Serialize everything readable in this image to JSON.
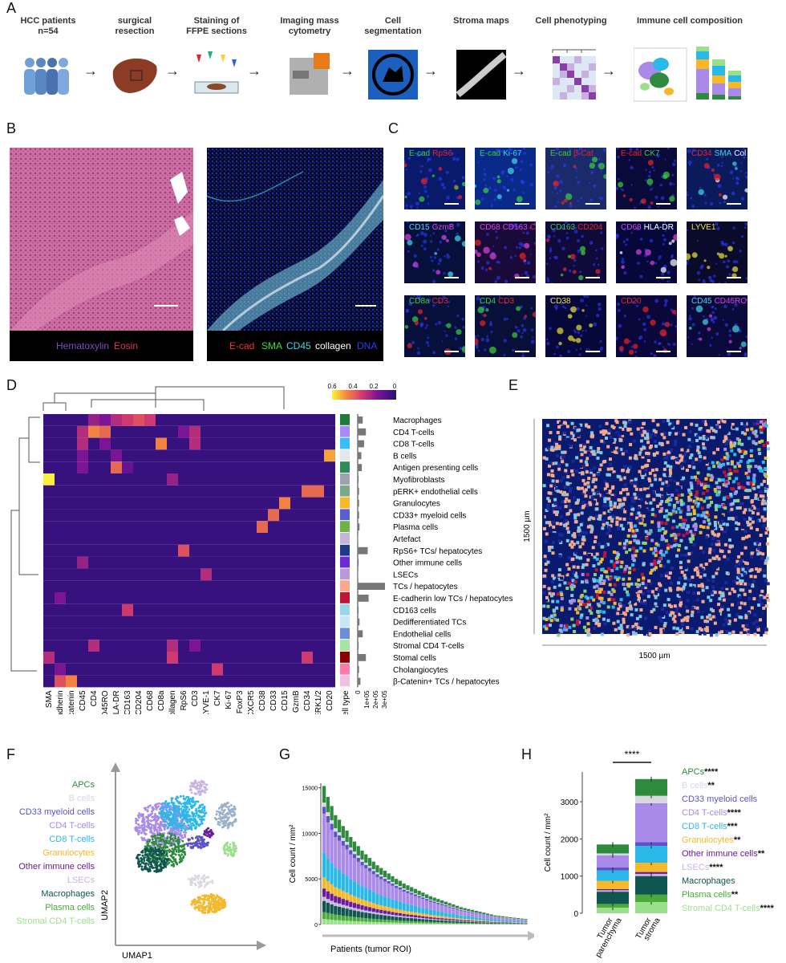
{
  "panels": {
    "a": "A",
    "b": "B",
    "c": "C",
    "d": "D",
    "e": "E",
    "f": "F",
    "g": "G",
    "h": "H"
  },
  "workflow": {
    "steps": [
      {
        "label": "HCC patients\nn=54"
      },
      {
        "label": "surgical\nresection"
      },
      {
        "label": "Staining of\nFFPE sections"
      },
      {
        "label": "Imaging mass\ncytometry"
      },
      {
        "label": "Cell\nsegmentation"
      },
      {
        "label": "Stroma maps"
      },
      {
        "label": "Cell phenotyping"
      },
      {
        "label": "Immune cell composition"
      }
    ]
  },
  "panel_b": {
    "he_caption": [
      "Hematoxylin",
      "Eosin"
    ],
    "imc_caption": [
      "E-cad",
      "SMA",
      "CD45",
      "collagen",
      "DNA"
    ],
    "colors": {
      "hematoxylin": "#7b4fc0",
      "eosin": "#e0306a",
      "ecad": "#ff2a2a",
      "sma": "#34e034",
      "cd45": "#3fd6e6",
      "collagen": "#ffffff",
      "dna": "#2a3bff"
    }
  },
  "panel_c": {
    "tiles": [
      [
        {
          "t": "E-cad",
          "c": "#3ad13a"
        },
        {
          "t": "RpS6",
          "c": "#e22"
        }
      ],
      [
        {
          "t": "E-cad",
          "c": "#3ad13a"
        },
        {
          "t": "Ki-67",
          "c": "#40d8e6"
        }
      ],
      [
        {
          "t": "E-cad",
          "c": "#3ad13a"
        },
        {
          "t": "β-Cat",
          "c": "#e22"
        }
      ],
      [
        {
          "t": "E-cad",
          "c": "#e22"
        },
        {
          "t": "CK7",
          "c": "#3ad13a"
        }
      ],
      [
        {
          "t": "CD34",
          "c": "#e22"
        },
        {
          "t": "SMA",
          "c": "#40d8e6"
        },
        {
          "t": "Col",
          "c": "#fff"
        }
      ],
      [
        {
          "t": "CD15",
          "c": "#40d8e6"
        },
        {
          "t": "GzmB",
          "c": "#e040e0"
        }
      ],
      [
        {
          "t": "CD68",
          "c": "#e040e0"
        },
        {
          "t": "CD163",
          "c": "#e040e0"
        },
        {
          "t": "CD204",
          "c": "#e22"
        }
      ],
      [
        {
          "t": "CD163",
          "c": "#3ad13a"
        },
        {
          "t": "CD204",
          "c": "#e22"
        }
      ],
      [
        {
          "t": "CD68",
          "c": "#e040e0"
        },
        {
          "t": "HLA-DR",
          "c": "#fff"
        }
      ],
      [
        {
          "t": "LYVE1",
          "c": "#f0e030"
        }
      ],
      [
        {
          "t": "CD8a",
          "c": "#3ad13a"
        },
        {
          "t": "CD3",
          "c": "#e22"
        }
      ],
      [
        {
          "t": "CD4",
          "c": "#3ad13a"
        },
        {
          "t": "CD3",
          "c": "#e22"
        }
      ],
      [
        {
          "t": "CD38",
          "c": "#f0e030"
        }
      ],
      [
        {
          "t": "CD20",
          "c": "#e22"
        }
      ],
      [
        {
          "t": "CD45",
          "c": "#40d8e6"
        },
        {
          "t": "CD45RO",
          "c": "#e040e0"
        }
      ]
    ]
  },
  "panel_d": {
    "rows": [
      "Macrophages",
      "CD4 T-cells",
      "CD8 T-cells",
      "B cells",
      "Antigen presenting cells",
      "Myofibroblasts",
      "pERK+ endothelial cells",
      "Granulocytes",
      "CD33+ myeloid cells",
      "Plasma cells",
      "Artefact",
      "RpS6+ TCs/ hepatocytes",
      "Other immune cells",
      "LSECs",
      "TCs / hepatocytes",
      "E-cadherin low TCs / hepatocytes",
      "CD163 cells",
      "Dedifferentiated TCs",
      "Endothelial cells",
      "Stromal CD4 T-cells",
      "Stomal cells",
      "Cholangiocytes",
      "β-Catenin+ TCs / hepatocytes"
    ],
    "cols": [
      "SMA",
      "E-cadherin",
      "β-catenin",
      "CD45",
      "CD4",
      "CD45RO",
      "HLA-DR",
      "CD163",
      "CD204",
      "CD68",
      "CD8a",
      "Collagen",
      "RpS6",
      "CD3",
      "LYVE-1",
      "CK7",
      "Ki-67",
      "FoxP3",
      "CXCR5",
      "CD38",
      "CD33",
      "CD15",
      "GzmB",
      "CD34",
      "pERK1/2",
      "CD20"
    ],
    "hot": [
      [
        0,
        6,
        0.3
      ],
      [
        0,
        7,
        0.35
      ],
      [
        0,
        8,
        0.4
      ],
      [
        0,
        9,
        0.35
      ],
      [
        0,
        4,
        0.25
      ],
      [
        0,
        5,
        0.2
      ],
      [
        1,
        4,
        0.5
      ],
      [
        1,
        5,
        0.45
      ],
      [
        1,
        3,
        0.3
      ],
      [
        1,
        12,
        0.2
      ],
      [
        1,
        13,
        0.3
      ],
      [
        2,
        10,
        0.5
      ],
      [
        2,
        13,
        0.3
      ],
      [
        2,
        3,
        0.3
      ],
      [
        2,
        5,
        0.2
      ],
      [
        3,
        25,
        0.55
      ],
      [
        3,
        6,
        0.2
      ],
      [
        3,
        3,
        0.2
      ],
      [
        4,
        6,
        0.45
      ],
      [
        4,
        3,
        0.2
      ],
      [
        4,
        7,
        0.15
      ],
      [
        5,
        0,
        0.65
      ],
      [
        5,
        11,
        0.25
      ],
      [
        6,
        24,
        0.45
      ],
      [
        6,
        23,
        0.45
      ],
      [
        7,
        21,
        0.5
      ],
      [
        8,
        20,
        0.45
      ],
      [
        9,
        19,
        0.45
      ],
      [
        11,
        12,
        0.4
      ],
      [
        12,
        3,
        0.25
      ],
      [
        13,
        14,
        0.3
      ],
      [
        15,
        1,
        0.2
      ],
      [
        16,
        7,
        0.35
      ],
      [
        19,
        4,
        0.3
      ],
      [
        19,
        11,
        0.3
      ],
      [
        19,
        13,
        0.2
      ],
      [
        20,
        0,
        0.3
      ],
      [
        20,
        11,
        0.35
      ],
      [
        20,
        23,
        0.35
      ],
      [
        21,
        15,
        0.35
      ],
      [
        21,
        1,
        0.2
      ],
      [
        22,
        2,
        0.5
      ],
      [
        22,
        1,
        0.4
      ]
    ],
    "row_colors": [
      "#1f7a3a",
      "#a78bfa",
      "#38bdf8",
      "#e5e7eb",
      "#2e8b57",
      "#9ca3af",
      "#7ba88a",
      "#f5b82a",
      "#5a5fd0",
      "#6fb347",
      "#c4b4d6",
      "#1e3a8a",
      "#6d28d9",
      "#b89ad6",
      "#f8a98a",
      "#c0153a",
      "#9ad6e8",
      "#c9e6f8",
      "#6a8fd8",
      "#a7e3a0",
      "#8b0000",
      "#ff7aa8",
      "#f0c0e0"
    ],
    "n_cells": [
      5500,
      9000,
      7000,
      4000,
      4500,
      1000,
      1500,
      1500,
      1500,
      2000,
      500,
      11000,
      1000,
      500,
      30000,
      12000,
      1000,
      2000,
      5500,
      1000,
      9000,
      1500,
      3000
    ],
    "n_cells_ticks": [
      "0",
      "1e+05",
      "2e+05",
      "3e+05"
    ],
    "colorbar_ticks": [
      "0.6",
      "0.4",
      "0.2",
      "0"
    ],
    "cell_type_label": "Cell type",
    "n_cells_label": "n_cells"
  },
  "panel_e": {
    "ylabel": "1500 µm",
    "xlabel": "1500 µm"
  },
  "panel_f": {
    "legend": [
      {
        "t": "APCs",
        "c": "#2e8b3e"
      },
      {
        "t": "B cells",
        "c": "#d8d8e0"
      },
      {
        "t": "CD33 myeloid cells",
        "c": "#5a54c8"
      },
      {
        "t": "CD4 T-cells",
        "c": "#a98ae8"
      },
      {
        "t": "CD8 T-cells",
        "c": "#2ab8e8"
      },
      {
        "t": "Granulocytes",
        "c": "#f5b82a"
      },
      {
        "t": "Other immune cells",
        "c": "#6a1b9a"
      },
      {
        "t": "LSECs",
        "c": "#c9b4e0"
      },
      {
        "t": "Macrophages",
        "c": "#0f5550"
      },
      {
        "t": "Plasma cells",
        "c": "#4aaa3a"
      },
      {
        "t": "Stromal CD4 T-cells",
        "c": "#9ae08a"
      }
    ],
    "xlabel": "UMAP1",
    "ylabel": "UMAP2"
  },
  "panel_g": {
    "ylabel": "Cell count / mm²",
    "xlabel": "Patients (tumor ROI)",
    "yticks": [
      "0",
      "5000",
      "10000",
      "15000"
    ],
    "chart_data": {
      "type": "bar",
      "stacked": true,
      "ylim": [
        0,
        15500
      ],
      "totals": [
        15200,
        14000,
        13000,
        12000,
        11500,
        10800,
        10300,
        9600,
        9100,
        8600,
        8100,
        7700,
        7300,
        6900,
        6500,
        6200,
        5900,
        5600,
        5300,
        5000,
        4800,
        4500,
        4300,
        4100,
        3900,
        3700,
        3500,
        3300,
        3100,
        2950,
        2800,
        2650,
        2500,
        2350,
        2200,
        2050,
        1900,
        1800,
        1700,
        1600,
        1500,
        1400,
        1300,
        1200,
        1100,
        1000,
        950,
        900,
        850,
        800,
        750,
        700,
        650,
        600
      ],
      "fractions": [
        0.12,
        0.03,
        0.05,
        0.28,
        0.18,
        0.08,
        0.06,
        0.03,
        0.08,
        0.05,
        0.04
      ],
      "series_colors": [
        "#2e8b3e",
        "#d8d8e0",
        "#5a54c8",
        "#a98ae8",
        "#2ab8e8",
        "#f5b82a",
        "#6a1b9a",
        "#c9b4e0",
        "#0f5550",
        "#4aaa3a",
        "#9ae08a"
      ]
    }
  },
  "panel_h": {
    "ylabel": "Cell count / mm²",
    "sig": "****",
    "yticks": [
      "0",
      "1000",
      "2000",
      "3000"
    ],
    "categories": [
      "Tumor\nparenchyma",
      "Tumor\nstroma"
    ],
    "legend": [
      {
        "t": "APCs",
        "s": "****",
        "c": "#2e8b3e"
      },
      {
        "t": "B cells",
        "s": "**",
        "c": "#d8d8e0"
      },
      {
        "t": "CD33 myeloid cells",
        "s": "",
        "c": "#5a54c8"
      },
      {
        "t": "CD4 T-cells",
        "s": "****",
        "c": "#a98ae8"
      },
      {
        "t": "CD8 T-cells",
        "s": "***",
        "c": "#2ab8e8"
      },
      {
        "t": "Granulocytes",
        "s": "**",
        "c": "#f5b82a"
      },
      {
        "t": "Other immune cells",
        "s": "**",
        "c": "#6a1b9a"
      },
      {
        "t": "LSECs",
        "s": "****",
        "c": "#c9b4e0"
      },
      {
        "t": "Macrophages",
        "s": "",
        "c": "#0f5550"
      },
      {
        "t": "Plasma cells",
        "s": "**",
        "c": "#4aaa3a"
      },
      {
        "t": "Stromal CD4 T-cells",
        "s": "****",
        "c": "#9ae08a"
      }
    ],
    "chart_data": {
      "type": "bar",
      "stacked": true,
      "ylim": [
        0,
        3800
      ],
      "categories": [
        "Tumor parenchyma",
        "Tumor stroma"
      ],
      "series": [
        {
          "name": "Stromal CD4 T-cells",
          "values": [
            150,
            300
          ]
        },
        {
          "name": "Plasma cells",
          "values": [
            100,
            200
          ]
        },
        {
          "name": "Macrophages",
          "values": [
            330,
            500
          ]
        },
        {
          "name": "LSECs",
          "values": [
            40,
            60
          ]
        },
        {
          "name": "Other immune cells",
          "values": [
            30,
            50
          ]
        },
        {
          "name": "Granulocytes",
          "values": [
            220,
            250
          ]
        },
        {
          "name": "CD8 T-cells",
          "values": [
            280,
            450
          ]
        },
        {
          "name": "CD33 myeloid cells",
          "values": [
            80,
            100
          ]
        },
        {
          "name": "CD4 T-cells",
          "values": [
            330,
            1050
          ]
        },
        {
          "name": "B cells",
          "values": [
            50,
            200
          ]
        },
        {
          "name": "APCs",
          "values": [
            240,
            450
          ]
        }
      ]
    }
  }
}
